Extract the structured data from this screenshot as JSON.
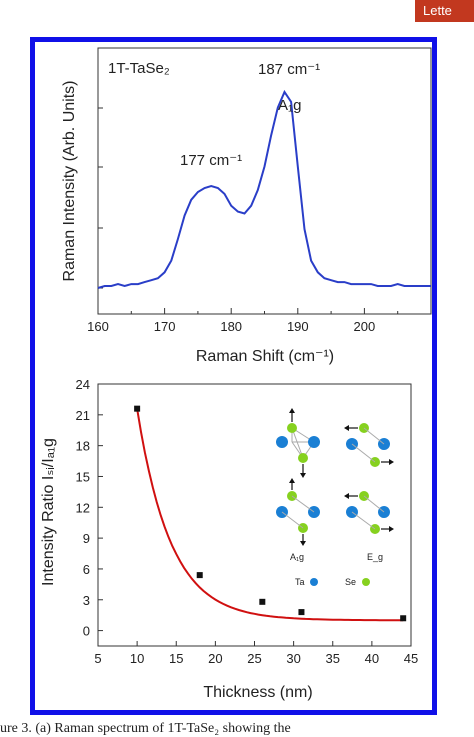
{
  "header": {
    "tag": "Lette"
  },
  "caption": "ure 3. (a) Raman spectrum of 1T-TaSe₂ showing the",
  "colors": {
    "frame": "#1010e8",
    "spectrum": "#2a3ec8",
    "fit": "#d01010",
    "ta_atom": "#1a7fd4",
    "se_atom": "#86d11f"
  },
  "chart_data": [
    {
      "type": "line",
      "title": "1T-TaSe₂",
      "xlabel": "Raman Shift (cm⁻¹)",
      "ylabel": "Raman Intensity (Arb. Units)",
      "xlim": [
        160,
        210
      ],
      "xticks": [
        160,
        170,
        180,
        190,
        200
      ],
      "yticks_labeled": false,
      "annotations": [
        {
          "text": "177 cm⁻¹",
          "x": 177
        },
        {
          "text": "187 cm⁻¹",
          "x": 187
        },
        {
          "text": "A₁g",
          "x": 188
        }
      ],
      "series": [
        {
          "x": [
            160,
            161,
            162,
            163,
            164,
            165,
            166,
            167,
            168,
            169,
            170,
            171,
            172,
            173,
            174,
            175,
            176,
            177,
            178,
            179,
            180,
            181,
            182,
            183,
            184,
            185,
            186,
            187,
            188,
            189,
            190,
            191,
            192,
            193,
            194,
            195,
            196,
            197,
            198,
            199,
            200,
            201,
            202,
            203,
            204,
            205,
            206,
            207,
            208,
            209,
            210
          ],
          "y": [
            0.0,
            0.01,
            0.01,
            0.02,
            0.01,
            0.02,
            0.02,
            0.03,
            0.04,
            0.05,
            0.08,
            0.14,
            0.25,
            0.37,
            0.45,
            0.49,
            0.51,
            0.52,
            0.51,
            0.48,
            0.42,
            0.39,
            0.38,
            0.42,
            0.5,
            0.62,
            0.78,
            0.92,
            1.0,
            0.95,
            0.62,
            0.3,
            0.14,
            0.08,
            0.05,
            0.04,
            0.03,
            0.03,
            0.02,
            0.02,
            0.02,
            0.02,
            0.01,
            0.01,
            0.01,
            0.02,
            0.01,
            0.01,
            0.01,
            0.01,
            0.01
          ]
        }
      ]
    },
    {
      "type": "scatter",
      "xlabel": "Thickness (nm)",
      "ylabel": "Intensity Ratio Iₛᵢ/Iₐ₁g",
      "xlim": [
        5,
        45
      ],
      "ylim": [
        -1.5,
        24
      ],
      "xticks": [
        5,
        10,
        15,
        20,
        25,
        30,
        35,
        40,
        45
      ],
      "yticks": [
        0,
        3,
        6,
        9,
        12,
        15,
        18,
        21,
        24
      ],
      "points": [
        {
          "x": 10,
          "y": 21.6
        },
        {
          "x": 18,
          "y": 5.4
        },
        {
          "x": 26,
          "y": 2.8
        },
        {
          "x": 31,
          "y": 1.8
        },
        {
          "x": 44,
          "y": 1.2
        }
      ],
      "fit": {
        "type": "exponential decay",
        "y0": 1.0,
        "A": 20.6,
        "t": 4.3,
        "x0": 10
      },
      "inset": {
        "labels": {
          "a1g": "A₁g",
          "eg": "E_g",
          "ta": "Ta",
          "se": "Se"
        }
      }
    }
  ]
}
